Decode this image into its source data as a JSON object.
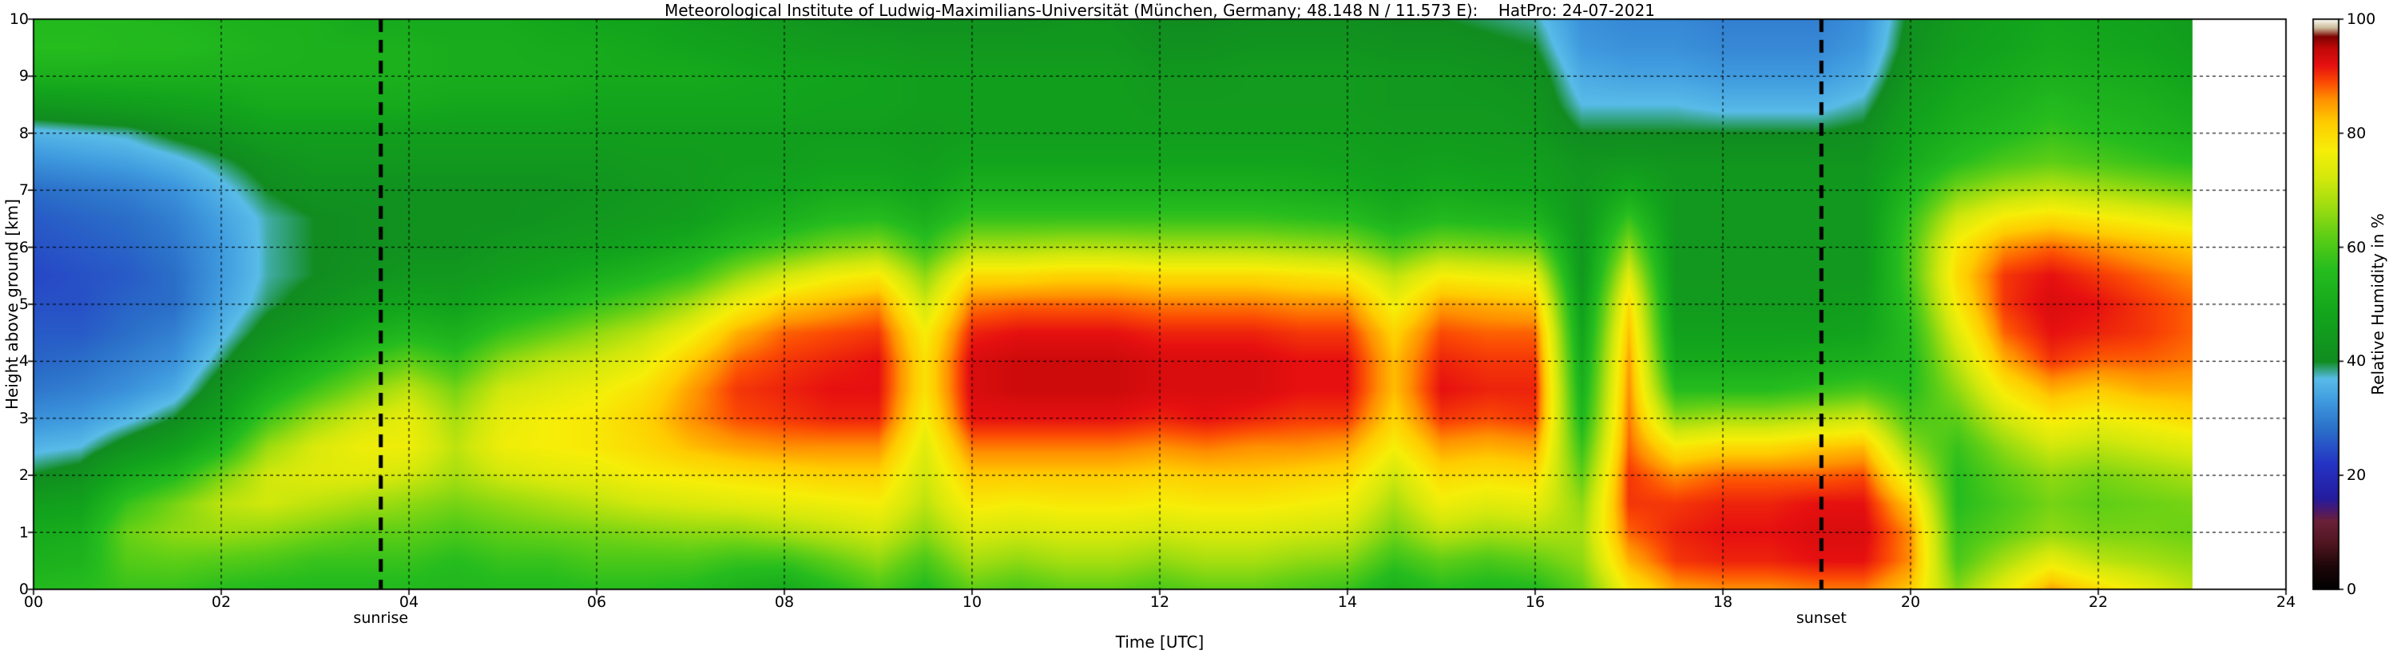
{
  "title": "Meteorological Institute of Ludwig-Maximilians-Universität (München, Germany; 48.148 N / 11.573 E):    HatPro: 24-07-2021",
  "axes": {
    "xlabel": "Time [UTC]",
    "ylabel": "Height above ground [km]",
    "colorbar_label": "Relative Humidity in %"
  },
  "annotations": {
    "sunrise": {
      "label": "sunrise",
      "time": 3.7
    },
    "sunset": {
      "label": "sunset",
      "time": 19.05
    }
  },
  "chart_data": {
    "type": "heatmap",
    "title": "Meteorological Institute of Ludwig-Maximilians-Universität (München, Germany; 48.148 N / 11.573 E):    HatPro: 24-07-2021",
    "xlabel": "Time [UTC]",
    "ylabel": "Height above ground [km]",
    "colorbar_label": "Relative Humidity in %",
    "x_range": [
      0,
      24
    ],
    "y_range": [
      0,
      10
    ],
    "value_range": [
      0,
      100
    ],
    "data_time_max": 23,
    "sunrise_time": 3.7,
    "sunset_time": 19.05,
    "x_ticks": [
      {
        "value": 0,
        "label": "00"
      },
      {
        "value": 2,
        "label": "02"
      },
      {
        "value": 4,
        "label": "04"
      },
      {
        "value": 6,
        "label": "06"
      },
      {
        "value": 8,
        "label": "08"
      },
      {
        "value": 10,
        "label": "10"
      },
      {
        "value": 12,
        "label": "12"
      },
      {
        "value": 14,
        "label": "14"
      },
      {
        "value": 16,
        "label": "16"
      },
      {
        "value": 18,
        "label": "18"
      },
      {
        "value": 20,
        "label": "20"
      },
      {
        "value": 22,
        "label": "22"
      },
      {
        "value": 24,
        "label": "24"
      }
    ],
    "y_ticks": [
      {
        "value": 0,
        "label": "0"
      },
      {
        "value": 1,
        "label": "1"
      },
      {
        "value": 2,
        "label": "2"
      },
      {
        "value": 3,
        "label": "3"
      },
      {
        "value": 4,
        "label": "4"
      },
      {
        "value": 5,
        "label": "5"
      },
      {
        "value": 6,
        "label": "6"
      },
      {
        "value": 7,
        "label": "7"
      },
      {
        "value": 8,
        "label": "8"
      },
      {
        "value": 9,
        "label": "9"
      },
      {
        "value": 10,
        "label": "10"
      }
    ],
    "colorbar_ticks": [
      {
        "value": 0,
        "label": "0"
      },
      {
        "value": 20,
        "label": "20"
      },
      {
        "value": 40,
        "label": "40"
      },
      {
        "value": 60,
        "label": "60"
      },
      {
        "value": 80,
        "label": "80"
      },
      {
        "value": 100,
        "label": "100"
      }
    ],
    "gridlines": {
      "x": [
        2,
        4,
        6,
        8,
        10,
        12,
        14,
        16,
        18,
        20,
        22
      ],
      "y": [
        1,
        2,
        3,
        4,
        5,
        6,
        7,
        8,
        9
      ]
    },
    "colormap": [
      [
        0,
        "#000000"
      ],
      [
        4,
        "#1c0608"
      ],
      [
        8,
        "#4e1520"
      ],
      [
        12,
        "#6b2138"
      ],
      [
        14,
        "#4a1a6e"
      ],
      [
        16,
        "#241c9e"
      ],
      [
        22,
        "#2433c4"
      ],
      [
        28,
        "#2a6ec8"
      ],
      [
        33,
        "#3f9ade"
      ],
      [
        37,
        "#58bce8"
      ],
      [
        40,
        "#118c20"
      ],
      [
        48,
        "#12a41c"
      ],
      [
        56,
        "#25bc1e"
      ],
      [
        62,
        "#5ece16"
      ],
      [
        67,
        "#9cdc10"
      ],
      [
        72,
        "#d2e80c"
      ],
      [
        77,
        "#f6ee08"
      ],
      [
        82,
        "#ffcc00"
      ],
      [
        86,
        "#ff9000"
      ],
      [
        89,
        "#fb4a04"
      ],
      [
        92,
        "#e61010"
      ],
      [
        95,
        "#c00808"
      ],
      [
        97,
        "#7e0202"
      ],
      [
        98.5,
        "#c9b795"
      ],
      [
        100,
        "#fdfcf5"
      ]
    ],
    "grid": {
      "times": [
        0,
        0.5,
        1,
        1.5,
        2,
        2.5,
        3,
        3.5,
        4,
        4.5,
        5,
        5.5,
        6,
        6.5,
        7,
        7.5,
        8,
        8.5,
        9,
        9.5,
        10,
        10.5,
        11,
        11.5,
        12,
        12.5,
        13,
        13.5,
        14,
        14.5,
        15,
        15.5,
        16,
        16.5,
        17,
        17.5,
        18,
        18.5,
        19,
        19.5,
        20,
        20.5,
        21,
        21.5,
        22,
        22.5,
        23
      ],
      "heights": [
        0,
        0.5,
        1,
        1.5,
        2,
        2.5,
        3,
        3.5,
        4,
        4.5,
        5,
        5.5,
        6,
        6.5,
        7,
        7.5,
        8,
        8.5,
        9,
        9.5,
        10
      ],
      "rh": [
        [
          55,
          52,
          50,
          46,
          40,
          36,
          32,
          29,
          27,
          26,
          25,
          24,
          25,
          26,
          28,
          32,
          36,
          44,
          52,
          56,
          55
        ],
        [
          56,
          53,
          51,
          47,
          42,
          37,
          33,
          30,
          28,
          26,
          25,
          25,
          26,
          27,
          29,
          33,
          37,
          45,
          52,
          56,
          55
        ],
        [
          58,
          61,
          63,
          58,
          50,
          42,
          36,
          32,
          30,
          28,
          27,
          26,
          27,
          28,
          30,
          34,
          38,
          46,
          52,
          55,
          55
        ],
        [
          58,
          62,
          66,
          64,
          55,
          46,
          40,
          35,
          32,
          30,
          28,
          28,
          29,
          30,
          32,
          36,
          41,
          47,
          52,
          55,
          54
        ],
        [
          56,
          61,
          67,
          70,
          64,
          54,
          47,
          43,
          39,
          36,
          34,
          33,
          33,
          34,
          36,
          39,
          43,
          48,
          52,
          54,
          53
        ],
        [
          55,
          60,
          66,
          72,
          72,
          67,
          59,
          52,
          46,
          42,
          39,
          38,
          38,
          38,
          40,
          42,
          46,
          50,
          52,
          53,
          52
        ],
        [
          55,
          58,
          64,
          70,
          74,
          73,
          67,
          59,
          52,
          46,
          42,
          40,
          40,
          40,
          42,
          44,
          46,
          50,
          52,
          52,
          52
        ],
        [
          55,
          58,
          62,
          68,
          74,
          76,
          72,
          65,
          58,
          51,
          46,
          42,
          41,
          41,
          42,
          44,
          46,
          50,
          52,
          52,
          50
        ],
        [
          55,
          58,
          62,
          66,
          72,
          76,
          75,
          70,
          62,
          54,
          48,
          44,
          42,
          42,
          42,
          44,
          46,
          50,
          52,
          52,
          50
        ],
        [
          54,
          56,
          60,
          64,
          68,
          70,
          68,
          64,
          58,
          52,
          47,
          44,
          42,
          42,
          42,
          44,
          46,
          49,
          51,
          51,
          50
        ],
        [
          55,
          58,
          62,
          66,
          72,
          76,
          75,
          72,
          66,
          58,
          51,
          46,
          44,
          42,
          42,
          44,
          46,
          49,
          51,
          51,
          50
        ],
        [
          55,
          58,
          63,
          68,
          74,
          77,
          77,
          74,
          70,
          62,
          54,
          48,
          45,
          43,
          42,
          44,
          46,
          49,
          51,
          50,
          49
        ],
        [
          56,
          60,
          64,
          70,
          75,
          78,
          78,
          76,
          72,
          66,
          58,
          51,
          46,
          44,
          43,
          44,
          46,
          48,
          50,
          50,
          48
        ],
        [
          56,
          60,
          65,
          72,
          77,
          80,
          81,
          79,
          75,
          70,
          62,
          54,
          48,
          45,
          44,
          45,
          46,
          48,
          50,
          49,
          48
        ],
        [
          55,
          60,
          66,
          73,
          78,
          83,
          86,
          85,
          82,
          76,
          68,
          58,
          51,
          46,
          45,
          45,
          46,
          48,
          50,
          48,
          46
        ],
        [
          52,
          58,
          66,
          74,
          79,
          85,
          89,
          90,
          88,
          84,
          76,
          66,
          56,
          50,
          47,
          46,
          46,
          48,
          49,
          47,
          45
        ],
        [
          50,
          58,
          68,
          75,
          80,
          86,
          90,
          91,
          90,
          88,
          82,
          72,
          60,
          52,
          48,
          46,
          46,
          48,
          48,
          46,
          44
        ],
        [
          55,
          62,
          70,
          76,
          81,
          86,
          91,
          92,
          91,
          89,
          84,
          76,
          64,
          55,
          50,
          47,
          46,
          47,
          48,
          45,
          43
        ],
        [
          60,
          66,
          72,
          77,
          81,
          86,
          91,
          92,
          92,
          90,
          86,
          78,
          66,
          56,
          50,
          47,
          46,
          47,
          47,
          45,
          42
        ],
        [
          55,
          60,
          66,
          70,
          72,
          74,
          77,
          79,
          79,
          77,
          72,
          66,
          58,
          52,
          48,
          46,
          45,
          46,
          46,
          44,
          42
        ],
        [
          62,
          68,
          73,
          78,
          82,
          87,
          92,
          93,
          93,
          91,
          87,
          80,
          68,
          58,
          52,
          48,
          46,
          46,
          46,
          44,
          42
        ],
        [
          60,
          66,
          72,
          77,
          82,
          87,
          92,
          94,
          94,
          92,
          88,
          80,
          68,
          58,
          52,
          48,
          46,
          46,
          46,
          44,
          42
        ],
        [
          62,
          68,
          73,
          78,
          82,
          87,
          92,
          94,
          94,
          92,
          88,
          81,
          69,
          58,
          52,
          48,
          46,
          46,
          46,
          44,
          43
        ],
        [
          62,
          68,
          73,
          78,
          82,
          87,
          92,
          94,
          94,
          92,
          88,
          81,
          69,
          58,
          52,
          48,
          46,
          46,
          46,
          44,
          43
        ],
        [
          60,
          66,
          72,
          77,
          81,
          86,
          91,
          93,
          93,
          91,
          87,
          80,
          68,
          58,
          52,
          48,
          46,
          45,
          44,
          42,
          40
        ],
        [
          62,
          68,
          73,
          78,
          82,
          87,
          92,
          93,
          93,
          91,
          87,
          80,
          68,
          58,
          52,
          48,
          46,
          45,
          44,
          42,
          40
        ],
        [
          62,
          68,
          73,
          78,
          82,
          86,
          91,
          93,
          93,
          91,
          87,
          80,
          68,
          58,
          52,
          48,
          46,
          45,
          45,
          43,
          41
        ],
        [
          60,
          66,
          72,
          77,
          81,
          86,
          90,
          92,
          92,
          90,
          86,
          79,
          67,
          57,
          51,
          48,
          46,
          45,
          45,
          43,
          41
        ],
        [
          58,
          65,
          71,
          76,
          80,
          85,
          90,
          92,
          92,
          90,
          86,
          78,
          66,
          56,
          50,
          47,
          46,
          45,
          45,
          43,
          41
        ],
        [
          52,
          58,
          64,
          68,
          72,
          77,
          81,
          83,
          83,
          81,
          76,
          70,
          60,
          52,
          48,
          46,
          45,
          44,
          44,
          42,
          40
        ],
        [
          56,
          62,
          70,
          76,
          80,
          85,
          90,
          92,
          91,
          89,
          85,
          77,
          65,
          55,
          50,
          47,
          45,
          44,
          44,
          42,
          40
        ],
        [
          54,
          60,
          68,
          74,
          79,
          84,
          89,
          91,
          90,
          88,
          84,
          76,
          64,
          54,
          49,
          46,
          45,
          44,
          43,
          41,
          39
        ],
        [
          55,
          62,
          69,
          75,
          80,
          85,
          90,
          91,
          90,
          88,
          83,
          75,
          63,
          53,
          48,
          46,
          44,
          43,
          42,
          40,
          38
        ],
        [
          62,
          66,
          68,
          66,
          62,
          58,
          54,
          52,
          50,
          48,
          46,
          44,
          44,
          44,
          44,
          43,
          40,
          37,
          35,
          33,
          32
        ],
        [
          78,
          84,
          88,
          90,
          90,
          88,
          87,
          86,
          85,
          83,
          80,
          74,
          66,
          58,
          50,
          44,
          40,
          37,
          34,
          32,
          31
        ],
        [
          85,
          90,
          91,
          90,
          86,
          78,
          66,
          56,
          50,
          47,
          45,
          44,
          44,
          44,
          44,
          43,
          40,
          37,
          34,
          32,
          31
        ],
        [
          86,
          91,
          92,
          91,
          88,
          80,
          68,
          56,
          50,
          47,
          45,
          44,
          44,
          44,
          44,
          43,
          40,
          36,
          33,
          31,
          30
        ],
        [
          86,
          91,
          92,
          91,
          88,
          80,
          68,
          56,
          50,
          47,
          45,
          44,
          44,
          44,
          44,
          43,
          40,
          36,
          33,
          31,
          30
        ],
        [
          87,
          92,
          93,
          92,
          88,
          82,
          70,
          58,
          51,
          47,
          45,
          44,
          44,
          44,
          44,
          43,
          40,
          36,
          33,
          31,
          30
        ],
        [
          87,
          92,
          93,
          92,
          89,
          83,
          72,
          60,
          52,
          48,
          46,
          44,
          44,
          44,
          44,
          43,
          41,
          38,
          35,
          33,
          32
        ],
        [
          82,
          86,
          86,
          82,
          74,
          66,
          60,
          56,
          55,
          56,
          58,
          60,
          60,
          58,
          54,
          50,
          48,
          46,
          44,
          42,
          41
        ],
        [
          65,
          60,
          58,
          56,
          56,
          58,
          62,
          66,
          70,
          74,
          78,
          80,
          78,
          72,
          64,
          56,
          52,
          50,
          48,
          46,
          45
        ],
        [
          75,
          68,
          62,
          60,
          62,
          66,
          72,
          78,
          84,
          88,
          90,
          90,
          86,
          78,
          68,
          60,
          55,
          52,
          50,
          48,
          47
        ],
        [
          85,
          75,
          66,
          64,
          66,
          72,
          78,
          84,
          90,
          92,
          93,
          92,
          88,
          80,
          70,
          62,
          58,
          55,
          52,
          50,
          49
        ],
        [
          80,
          70,
          64,
          62,
          64,
          70,
          76,
          82,
          88,
          91,
          92,
          90,
          86,
          78,
          68,
          60,
          56,
          53,
          51,
          49,
          48
        ],
        [
          75,
          68,
          64,
          63,
          66,
          72,
          78,
          84,
          88,
          90,
          90,
          88,
          84,
          76,
          66,
          58,
          54,
          52,
          50,
          48,
          47
        ],
        [
          70,
          66,
          63,
          64,
          68,
          74,
          80,
          84,
          87,
          88,
          88,
          86,
          82,
          74,
          64,
          56,
          52,
          50,
          48,
          46,
          45
        ]
      ]
    }
  }
}
